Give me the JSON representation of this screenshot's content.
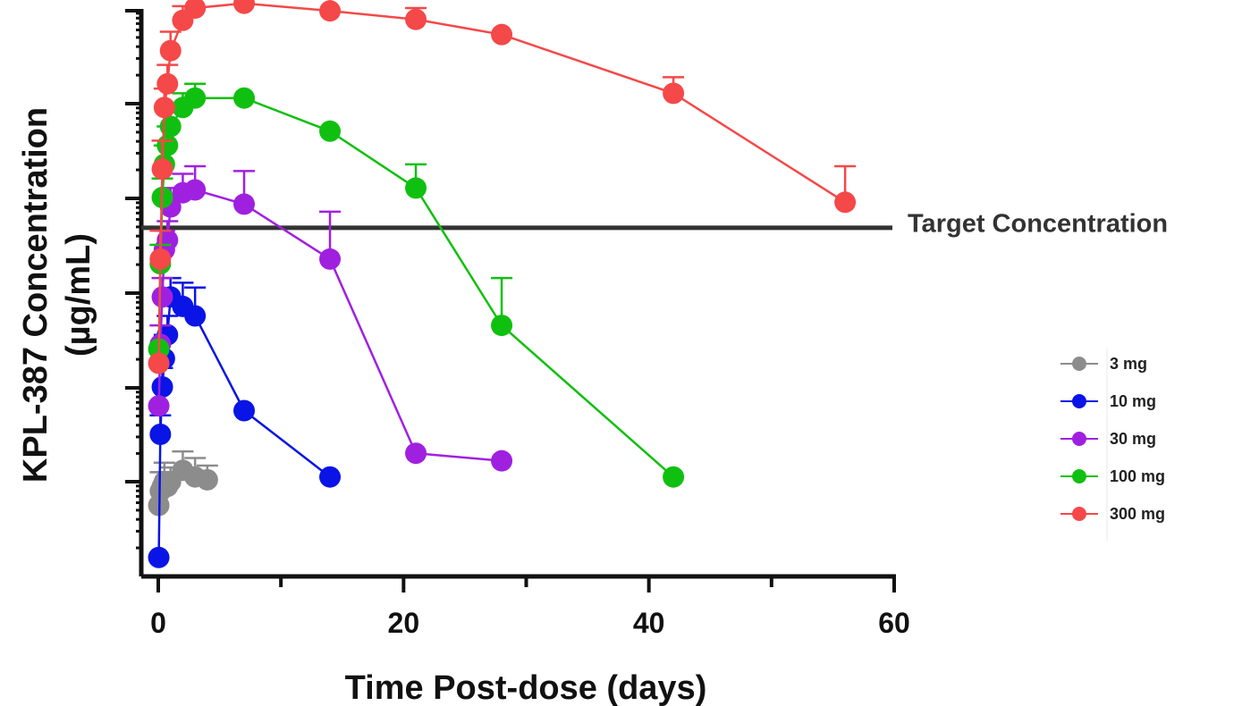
{
  "chart_data": {
    "type": "line",
    "xlabel": "Time Post-dose (days)",
    "ylabel_line1": "KPL-387 Concentration",
    "ylabel_line2": "(µg/mL)",
    "xlim": [
      0,
      60
    ],
    "x_ticks": [
      "0",
      "20",
      "40",
      "60"
    ],
    "y_scale": "log",
    "y_tick_labels_shown": false,
    "ylim_decades": [
      0,
      4.8
    ],
    "legend_position": "right",
    "reference_line": {
      "label": "Target Concentration",
      "y_decade": 3.68,
      "color": "#333333"
    },
    "series": [
      {
        "name": "3 mg",
        "color": "#8c8c8c",
        "x": [
          0.04,
          0.17,
          0.33,
          0.5,
          0.75,
          1,
          2,
          3,
          4
        ],
        "y": [
          0.75,
          0.9,
          0.95,
          1.0,
          0.95,
          1.0,
          1.12,
          1.05,
          1.02
        ],
        "err": [
          0,
          0.2,
          0.15,
          0.2,
          0.15,
          0.15,
          0.2,
          0.2,
          0.15
        ]
      },
      {
        "name": "10 mg",
        "color": "#0a14e6",
        "x": [
          0.04,
          0.17,
          0.33,
          0.5,
          0.75,
          1,
          2,
          3,
          7,
          14
        ],
        "y": [
          0.2,
          1.5,
          2.0,
          2.3,
          2.55,
          2.95,
          2.85,
          2.75,
          1.75,
          1.05
        ],
        "err": [
          0,
          0.2,
          0.2,
          0.25,
          0.2,
          0.2,
          0.25,
          0.3,
          0,
          0
        ]
      },
      {
        "name": "30 mg",
        "color": "#a020e0",
        "x": [
          0.04,
          0.17,
          0.33,
          0.5,
          0.75,
          1,
          2,
          3,
          7,
          14,
          21,
          28
        ],
        "y": [
          1.8,
          2.45,
          2.95,
          3.45,
          3.55,
          3.9,
          4.05,
          4.08,
          3.93,
          3.35,
          1.3,
          1.22
        ],
        "err": [
          0,
          0.2,
          0.2,
          0.2,
          0.2,
          0.2,
          0.2,
          0.25,
          0.35,
          0.5,
          0,
          0
        ]
      },
      {
        "name": "100 mg",
        "color": "#10c010",
        "x": [
          0.04,
          0.17,
          0.33,
          0.5,
          0.75,
          1,
          2,
          3,
          7,
          14,
          21,
          28,
          42
        ],
        "y": [
          2.4,
          3.3,
          4.0,
          4.35,
          4.55,
          4.75,
          4.95,
          5.05,
          5.05,
          4.7,
          4.1,
          2.65,
          1.05
        ],
        "err": [
          0,
          0.2,
          0.2,
          0.2,
          0.2,
          0.2,
          0.15,
          0.15,
          0,
          0,
          0.25,
          0.5,
          0
        ]
      },
      {
        "name": "300 mg",
        "color": "#f54848",
        "x": [
          0.04,
          0.17,
          0.33,
          0.5,
          0.75,
          1,
          2,
          3,
          7,
          14,
          21,
          28,
          42,
          56
        ],
        "y": [
          2.25,
          3.35,
          4.3,
          4.95,
          5.2,
          5.55,
          5.87,
          6.0,
          6.05,
          5.97,
          5.88,
          5.72,
          5.1,
          3.95
        ],
        "err": [
          0,
          0.3,
          0.3,
          0.2,
          0.2,
          0.2,
          0.15,
          0.15,
          0,
          0.15,
          0.12,
          0,
          0.17,
          0.38
        ]
      }
    ]
  }
}
